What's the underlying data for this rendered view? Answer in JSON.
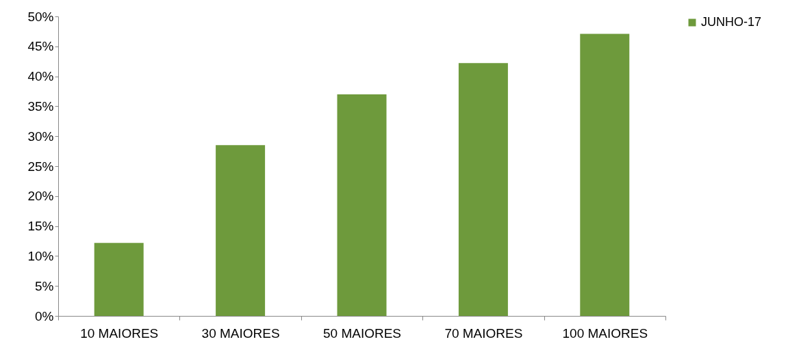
{
  "chart_data": {
    "type": "bar",
    "categories": [
      "10 MAIORES",
      "30 MAIORES",
      "50 MAIORES",
      "70 MAIORES",
      "100 MAIORES"
    ],
    "series": [
      {
        "name": "JUNHO-17",
        "color": "#6e9a3c",
        "values": [
          12.2,
          28.5,
          37,
          42.2,
          47.1
        ]
      }
    ],
    "ylim": [
      0,
      50
    ],
    "yticks": [
      {
        "value": 0,
        "label": "0%"
      },
      {
        "value": 5,
        "label": "5%"
      },
      {
        "value": 10,
        "label": "10%"
      },
      {
        "value": 15,
        "label": "15%"
      },
      {
        "value": 20,
        "label": "20%"
      },
      {
        "value": 25,
        "label": "25%"
      },
      {
        "value": 30,
        "label": "30%"
      },
      {
        "value": 35,
        "label": "35%"
      },
      {
        "value": 40,
        "label": "40%"
      },
      {
        "value": 45,
        "label": "45%"
      },
      {
        "value": 50,
        "label": "50%"
      }
    ],
    "grid": false,
    "legend": "right"
  }
}
